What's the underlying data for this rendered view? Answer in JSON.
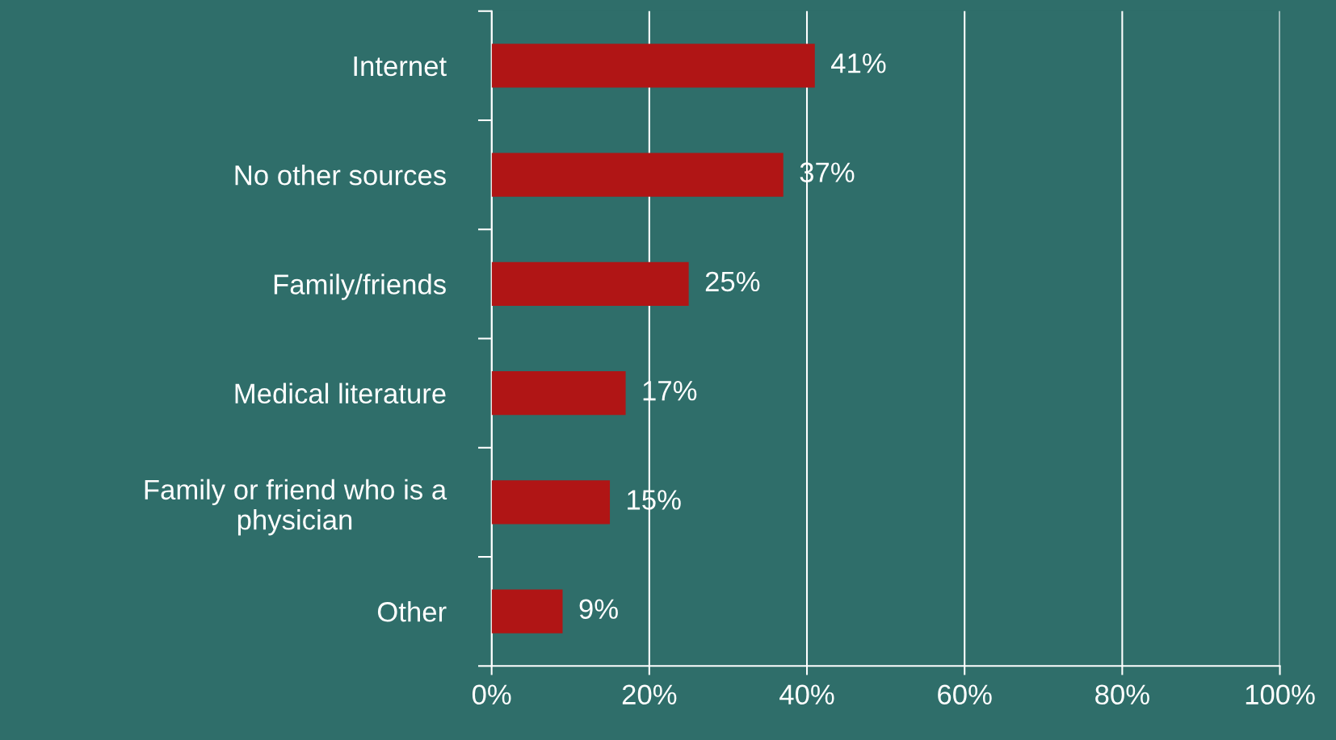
{
  "chart_data": {
    "type": "bar",
    "orientation": "horizontal",
    "categories": [
      "Internet",
      "No other sources",
      "Family/friends",
      "Medical literature",
      "Family or friend who is a\nphysician",
      "Other"
    ],
    "values": [
      41,
      37,
      25,
      17,
      15,
      9
    ],
    "value_labels": [
      "41%",
      "37%",
      "25%",
      "17%",
      "15%",
      "9%"
    ],
    "color": "#b01515",
    "xlim": [
      0,
      100
    ],
    "xticks": [
      {
        "value": 0,
        "label": "0%"
      },
      {
        "value": 20,
        "label": "20%"
      },
      {
        "value": 40,
        "label": "40%"
      },
      {
        "value": 60,
        "label": "60%"
      },
      {
        "value": 80,
        "label": "80%"
      },
      {
        "value": 100,
        "label": "100%"
      }
    ],
    "grid": "x",
    "legend": false
  }
}
